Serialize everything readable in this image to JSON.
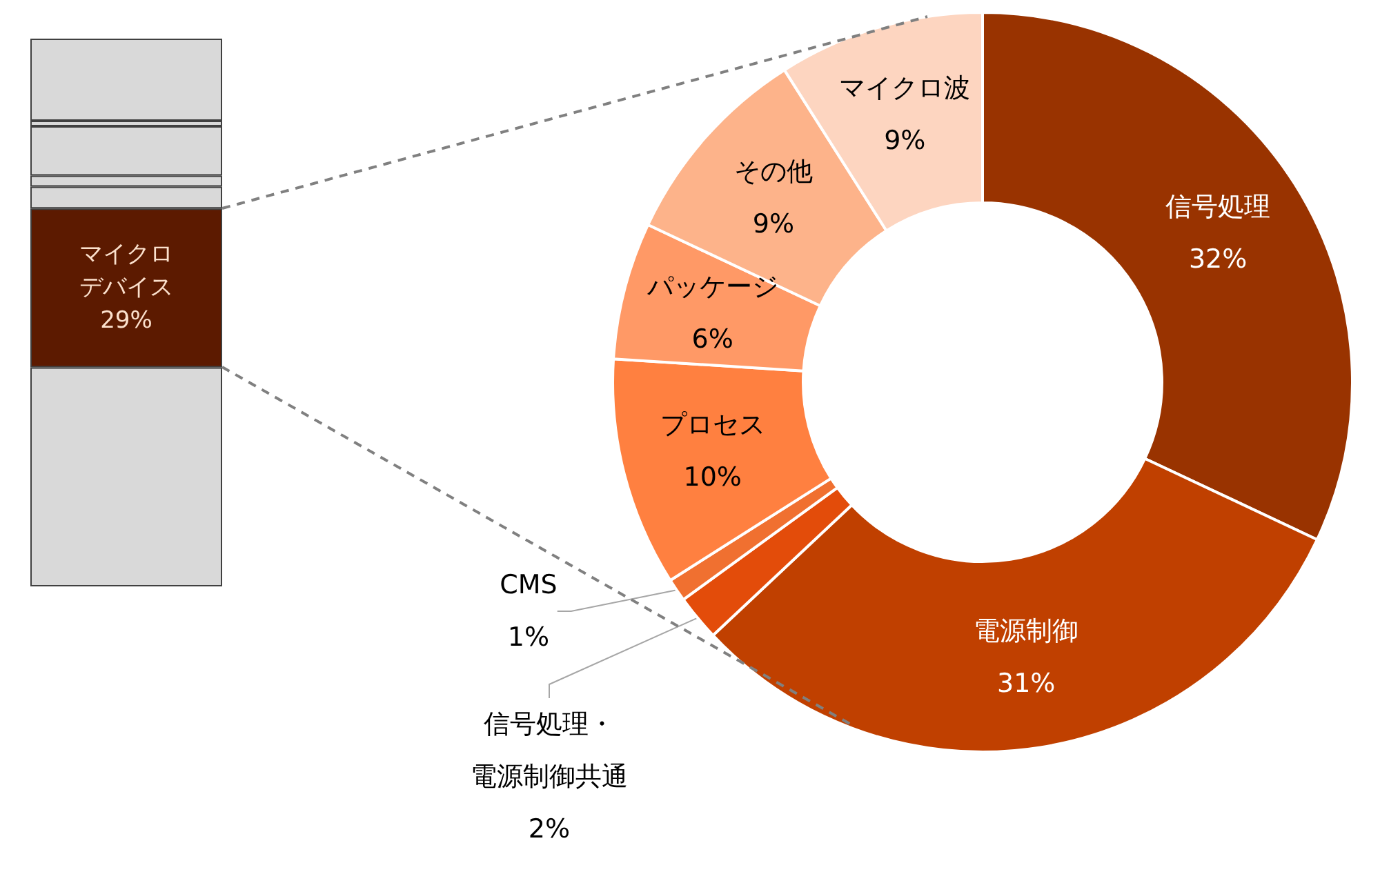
{
  "chart_data": [
    {
      "type": "bar",
      "stacked": true,
      "categories": [
        null
      ],
      "series": [
        {
          "color": "#d9d9d9",
          "values": [
            40
          ]
        },
        {
          "name": "マイクロデバイス",
          "color": "#5c1a00",
          "values": [
            29
          ],
          "value_labels": [
            "29%"
          ]
        },
        {
          "color": "#d9d9d9",
          "values": [
            4
          ]
        },
        {
          "color": "#d9d9d9",
          "values": [
            2
          ]
        },
        {
          "color": "#d9d9d9",
          "values": [
            9
          ]
        },
        {
          "color": "#d9d9d9",
          "values": [
            1
          ]
        },
        {
          "color": "#d9d9d9",
          "values": [
            15
          ]
        }
      ]
    },
    {
      "type": "donut",
      "categories": [
        "信号処理",
        "電源制御",
        "信号処理・電源制御共通",
        "CMS",
        "プロセス",
        "パッケージ",
        "その他",
        "マイクロ波"
      ],
      "values": [
        32,
        31,
        2,
        1,
        10,
        6,
        9,
        9
      ],
      "colors": [
        "#993300",
        "#c04000",
        "#e34c0a",
        "#f07030",
        "#ff8040",
        "#ff9966",
        "#fdb38a",
        "#fdd5c0"
      ],
      "value_labels": [
        "32%",
        "31%",
        "2%",
        "1%",
        "10%",
        "6%",
        "9%",
        "9%"
      ]
    }
  ]
}
